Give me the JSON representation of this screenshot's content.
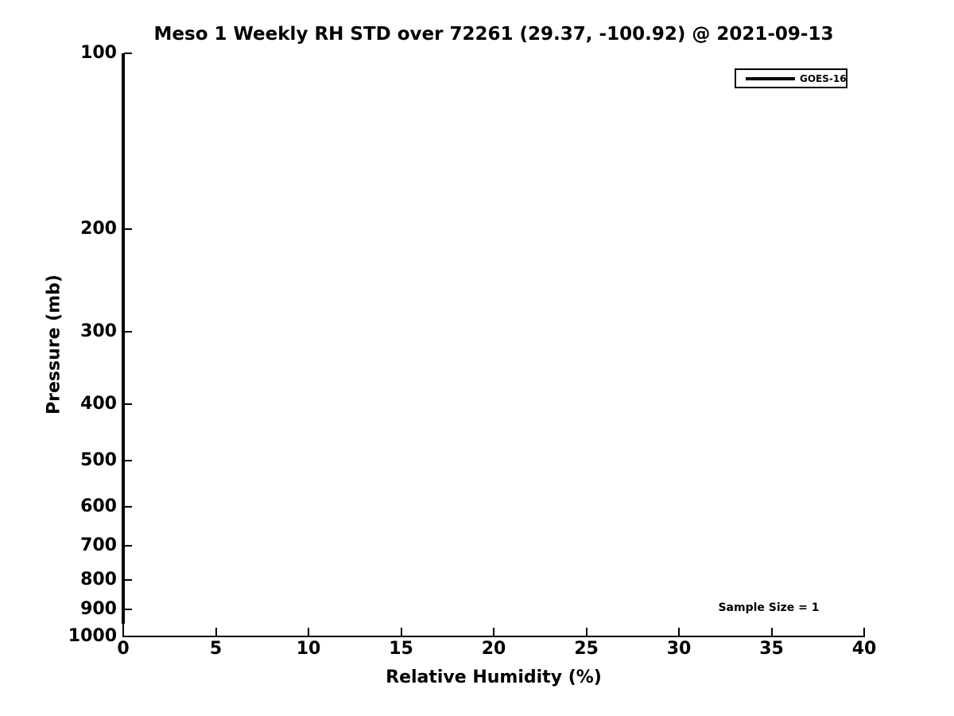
{
  "title": "Meso 1 Weekly RH STD over 72261 (29.37, -100.92) @ 2021-09-13",
  "x_axis": {
    "label": "Relative Humidity (%)",
    "min": 0,
    "max": 40,
    "ticks": [
      0,
      5,
      10,
      15,
      20,
      25,
      30,
      35,
      40
    ]
  },
  "y_axis": {
    "label": "Pressure (mb)",
    "min": 100,
    "max": 1000,
    "scale": "log",
    "inverted": true,
    "ticks": [
      100,
      200,
      300,
      400,
      500,
      600,
      700,
      800,
      900,
      1000
    ]
  },
  "legend": {
    "position": "upper-right",
    "entries": [
      {
        "label": "GOES-16",
        "color": "#000000",
        "line_width": 4
      }
    ]
  },
  "annotations": [
    {
      "text": "Sample Size = 1"
    }
  ],
  "colors": {
    "line": "#000000",
    "text": "#000000",
    "background": "#ffffff",
    "axis": "#000000"
  },
  "chart_data": {
    "type": "line",
    "title": "Meso 1 Weekly RH STD over 72261 (29.37, -100.92) @ 2021-09-13",
    "xlabel": "Relative Humidity (%)",
    "ylabel": "Pressure (mb)",
    "xlim": [
      0,
      40
    ],
    "ylim": [
      100,
      1000
    ],
    "y_scale": "log",
    "y_axis_inverted": true,
    "grid": false,
    "legend_position": "upper right",
    "sample_size": 1,
    "series": [
      {
        "name": "GOES-16",
        "color": "#000000",
        "x_rh_std_percent": [
          0,
          0
        ],
        "y_pressure_mb": [
          100,
          950
        ],
        "description": "Vertical line at RH STD = 0% spanning 100 mb to ~950 mb (single sample, zero standard deviation at all levels)"
      }
    ]
  }
}
